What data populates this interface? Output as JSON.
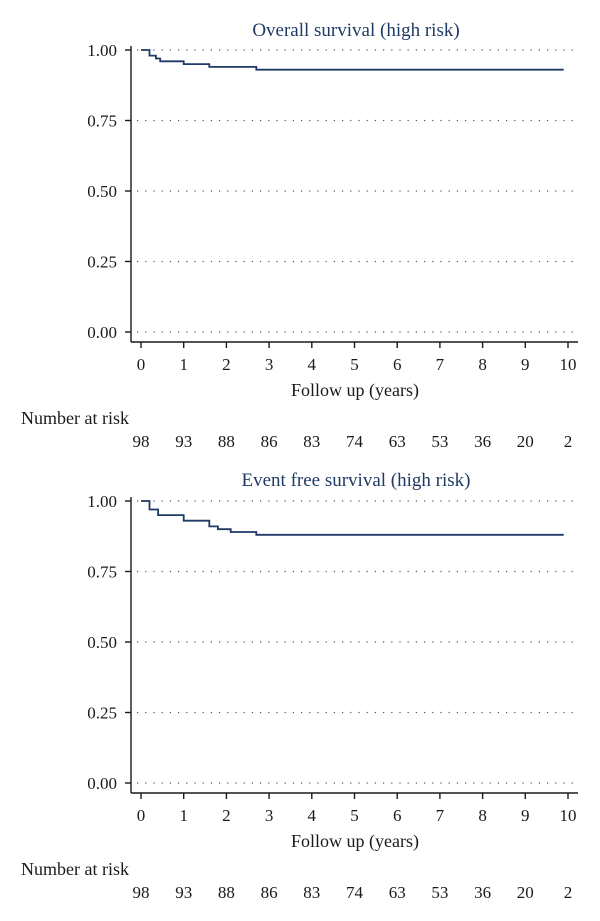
{
  "colors": {
    "curve": "#1f3a64",
    "title": "#1f3a64"
  },
  "chart_data": [
    {
      "type": "line",
      "title": "Overall survival (high risk)",
      "xlabel": "Follow up (years)",
      "ylabel": "",
      "xlim": [
        0,
        10
      ],
      "ylim": [
        0,
        1
      ],
      "x_ticks": [
        "0",
        "1",
        "2",
        "3",
        "4",
        "5",
        "6",
        "7",
        "8",
        "9",
        "10"
      ],
      "y_ticks": [
        "0.00",
        "0.25",
        "0.50",
        "0.75",
        "1.00"
      ],
      "grid": "horizontal-dotted",
      "step": true,
      "series": [
        {
          "x": [
            0,
            0.2,
            0.2,
            0.35,
            0.35,
            0.45,
            0.45,
            1.0,
            1.0,
            1.6,
            1.6,
            2.7,
            2.7,
            9.9
          ],
          "y": [
            1.0,
            1.0,
            0.98,
            0.98,
            0.97,
            0.97,
            0.96,
            0.96,
            0.95,
            0.95,
            0.94,
            0.94,
            0.93,
            0.93
          ]
        }
      ],
      "risk_table": {
        "title": "Number at risk",
        "values": [
          "98",
          "93",
          "88",
          "86",
          "83",
          "74",
          "63",
          "53",
          "36",
          "20",
          "2"
        ]
      }
    },
    {
      "type": "line",
      "title": "Event free survival (high risk)",
      "xlabel": "Follow up (years)",
      "ylabel": "",
      "xlim": [
        0,
        10
      ],
      "ylim": [
        0,
        1
      ],
      "x_ticks": [
        "0",
        "1",
        "2",
        "3",
        "4",
        "5",
        "6",
        "7",
        "8",
        "9",
        "10"
      ],
      "y_ticks": [
        "0.00",
        "0.25",
        "0.50",
        "0.75",
        "1.00"
      ],
      "grid": "horizontal-dotted",
      "step": true,
      "series": [
        {
          "x": [
            0,
            0.2,
            0.2,
            0.4,
            0.4,
            1.0,
            1.0,
            1.6,
            1.6,
            1.8,
            1.8,
            2.1,
            2.1,
            2.7,
            2.7,
            9.9
          ],
          "y": [
            1.0,
            1.0,
            0.97,
            0.97,
            0.95,
            0.95,
            0.93,
            0.93,
            0.91,
            0.91,
            0.9,
            0.9,
            0.89,
            0.89,
            0.88,
            0.88
          ]
        }
      ],
      "risk_table": {
        "title": "Number at risk",
        "values": [
          "98",
          "93",
          "88",
          "86",
          "83",
          "74",
          "63",
          "53",
          "36",
          "20",
          "2"
        ]
      }
    }
  ]
}
